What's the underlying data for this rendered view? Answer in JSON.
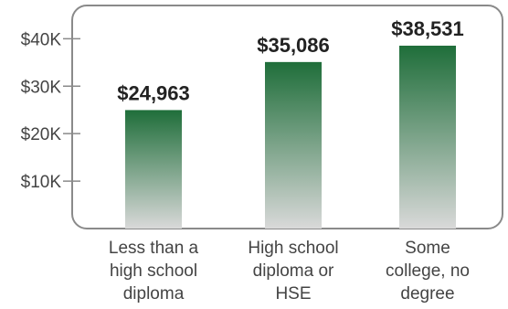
{
  "chart_data": {
    "type": "bar",
    "title": "",
    "xlabel": "",
    "ylabel": "",
    "categories": [
      [
        "Less than a",
        "high school",
        "diploma"
      ],
      [
        "High school",
        "diploma or",
        "HSE"
      ],
      [
        "Some",
        "college, no",
        "degree"
      ]
    ],
    "values": [
      24963,
      35086,
      38531
    ],
    "value_labels": [
      "$24,963",
      "$35,086",
      "$38,531"
    ],
    "y_ticks": [
      {
        "value": 10000,
        "label": "$10K"
      },
      {
        "value": 20000,
        "label": "$20K"
      },
      {
        "value": 30000,
        "label": "$30K"
      },
      {
        "value": 40000,
        "label": "$40K"
      }
    ],
    "ylim": [
      0,
      47000
    ],
    "grid": false,
    "legend": "none",
    "colors": {
      "bar_top": "#1f6e3a",
      "bar_bottom": "#d9d9d9",
      "frame": "#8a8a8a",
      "text": "#444444",
      "value_text": "#222222"
    }
  }
}
